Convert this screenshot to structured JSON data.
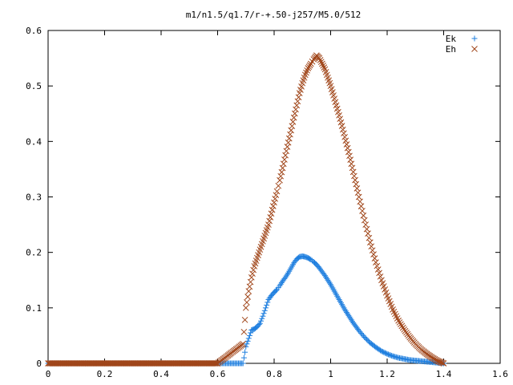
{
  "chart_data": {
    "type": "scatter",
    "title": "m1/n1.5/q1.7/r-+.50-j257/M5.0/512",
    "xlabel": "",
    "ylabel": "",
    "xlim": [
      0,
      1.6
    ],
    "ylim": [
      0,
      0.6
    ],
    "x_ticks": [
      "0",
      "0.2",
      "0.4",
      "0.6",
      "0.8",
      "1",
      "1.2",
      "1.4",
      "1.6"
    ],
    "y_ticks": [
      "0",
      "0.1",
      "0.2",
      "0.3",
      "0.4",
      "0.5",
      "0.6"
    ],
    "grid": false,
    "legend_position": "top-right",
    "series": [
      {
        "name": "Ek",
        "marker": "plus",
        "color": "#1f7fdf",
        "x": [
          0.0,
          0.1,
          0.2,
          0.3,
          0.4,
          0.5,
          0.6,
          0.69,
          0.7,
          0.71,
          0.72,
          0.73,
          0.74,
          0.75,
          0.76,
          0.77,
          0.78,
          0.79,
          0.8,
          0.81,
          0.82,
          0.83,
          0.84,
          0.85,
          0.86,
          0.87,
          0.88,
          0.89,
          0.9,
          0.91,
          0.92,
          0.93,
          0.94,
          0.95,
          0.96,
          0.97,
          0.98,
          0.99,
          1.0,
          1.01,
          1.02,
          1.03,
          1.04,
          1.05,
          1.06,
          1.07,
          1.08,
          1.09,
          1.1,
          1.12,
          1.14,
          1.16,
          1.18,
          1.2,
          1.22,
          1.24,
          1.26,
          1.28,
          1.3,
          1.32,
          1.34,
          1.36,
          1.38,
          1.4
        ],
        "y": [
          0,
          0,
          0,
          0,
          0,
          0,
          0,
          0,
          0.03,
          0.045,
          0.06,
          0.062,
          0.066,
          0.072,
          0.085,
          0.1,
          0.115,
          0.122,
          0.128,
          0.133,
          0.14,
          0.148,
          0.155,
          0.163,
          0.172,
          0.181,
          0.188,
          0.192,
          0.193,
          0.192,
          0.19,
          0.187,
          0.183,
          0.178,
          0.172,
          0.165,
          0.158,
          0.15,
          0.142,
          0.133,
          0.124,
          0.115,
          0.106,
          0.097,
          0.089,
          0.081,
          0.073,
          0.066,
          0.059,
          0.047,
          0.037,
          0.029,
          0.022,
          0.017,
          0.013,
          0.01,
          0.008,
          0.006,
          0.005,
          0.004,
          0.003,
          0.002,
          0.001,
          0.0
        ]
      },
      {
        "name": "Eh",
        "marker": "cross",
        "color": "#a0461a",
        "x": [
          0.0,
          0.1,
          0.2,
          0.3,
          0.4,
          0.5,
          0.6,
          0.69,
          0.7,
          0.71,
          0.72,
          0.73,
          0.74,
          0.75,
          0.76,
          0.77,
          0.78,
          0.79,
          0.8,
          0.81,
          0.82,
          0.83,
          0.84,
          0.85,
          0.86,
          0.87,
          0.88,
          0.89,
          0.9,
          0.91,
          0.92,
          0.93,
          0.94,
          0.95,
          0.96,
          0.97,
          0.98,
          0.99,
          1.0,
          1.01,
          1.02,
          1.03,
          1.04,
          1.05,
          1.06,
          1.07,
          1.08,
          1.09,
          1.1,
          1.12,
          1.14,
          1.16,
          1.18,
          1.2,
          1.22,
          1.24,
          1.26,
          1.28,
          1.3,
          1.32,
          1.34,
          1.36,
          1.38,
          1.4
        ],
        "y": [
          0,
          0,
          0,
          0,
          0,
          0,
          0,
          0.035,
          0.1,
          0.13,
          0.155,
          0.175,
          0.19,
          0.205,
          0.22,
          0.235,
          0.25,
          0.27,
          0.29,
          0.31,
          0.33,
          0.352,
          0.375,
          0.398,
          0.42,
          0.443,
          0.465,
          0.487,
          0.505,
          0.52,
          0.532,
          0.54,
          0.548,
          0.555,
          0.55,
          0.54,
          0.53,
          0.515,
          0.5,
          0.483,
          0.465,
          0.447,
          0.428,
          0.408,
          0.388,
          0.367,
          0.345,
          0.323,
          0.3,
          0.258,
          0.218,
          0.182,
          0.15,
          0.122,
          0.097,
          0.077,
          0.061,
          0.047,
          0.035,
          0.025,
          0.017,
          0.01,
          0.004,
          0.0
        ]
      }
    ]
  }
}
